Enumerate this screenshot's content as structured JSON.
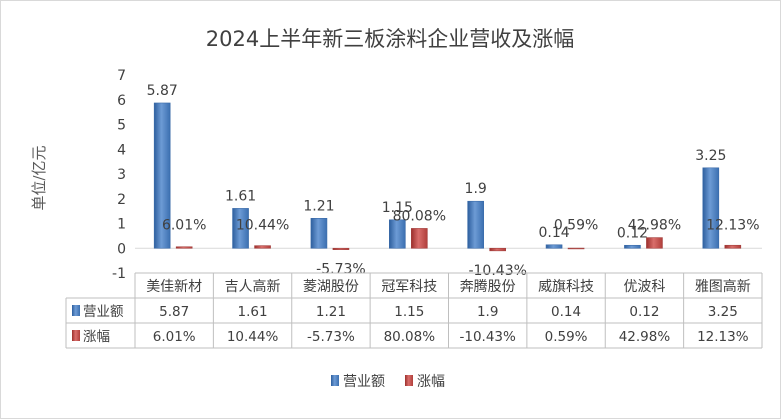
{
  "chart_data": {
    "type": "bar",
    "title": "2024上半年新三板涂料企业营收及涨幅",
    "ylabel": "单位/亿元",
    "ylim": [
      -1,
      7
    ],
    "yticks": [
      -1,
      0,
      1,
      2,
      3,
      4,
      5,
      6,
      7
    ],
    "categories": [
      "美佳新材",
      "吉人高新",
      "菱湖股份",
      "冠军科技",
      "奔腾股份",
      "威旗科技",
      "优波科",
      "雅图高新"
    ],
    "series": [
      {
        "name": "营业额",
        "values": [
          5.87,
          1.61,
          1.21,
          1.15,
          1.9,
          0.14,
          0.12,
          3.25
        ],
        "labels": [
          "5.87",
          "1.61",
          "1.21",
          "1.15",
          "1.9",
          "0.14",
          "0.12",
          "3.25"
        ],
        "color": "#4f81bd"
      },
      {
        "name": "涨幅",
        "values": [
          0.0601,
          0.1044,
          -0.0573,
          0.8008,
          -0.1043,
          0.0059,
          0.4298,
          0.1213
        ],
        "labels": [
          "6.01%",
          "10.44%",
          "-5.73%",
          "80.08%",
          "-10.43%",
          "0.59%",
          "42.98%",
          "12.13%"
        ],
        "color": "#c0504d"
      }
    ],
    "grid": false,
    "data_table": true,
    "legend_position": "bottom"
  }
}
